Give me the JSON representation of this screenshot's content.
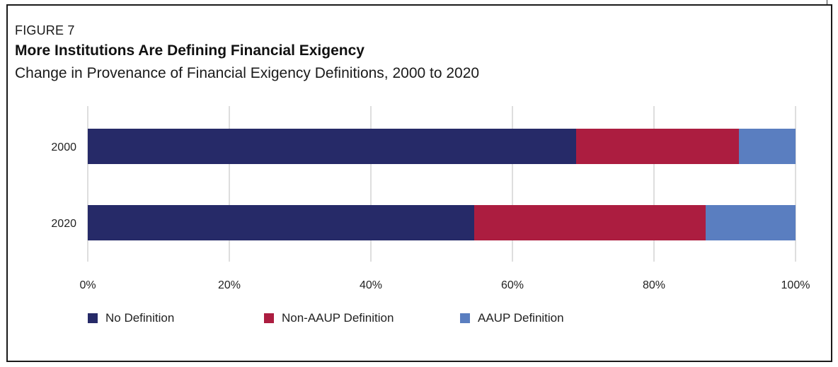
{
  "figure": {
    "label": "FIGURE 7",
    "title": "More Institutions Are Defining Financial Exigency",
    "subtitle": "Change in Provenance of Financial Exigency Definitions, 2000 to 2020"
  },
  "colors": {
    "no_definition": "#262a68",
    "non_aaup": "#ac1d40",
    "aaup": "#5a7ec0",
    "grid": "#bcbcbc",
    "text": "#222222"
  },
  "chart_data": {
    "type": "bar",
    "orientation": "horizontal",
    "stacked": true,
    "categories": [
      "2000",
      "2020"
    ],
    "series": [
      {
        "name": "No Definition",
        "values": [
          69.0,
          54.6
        ],
        "color_key": "no_definition"
      },
      {
        "name": "Non-AAUP Definition",
        "values": [
          23.0,
          32.7
        ],
        "color_key": "non_aaup"
      },
      {
        "name": "AAUP Definition",
        "values": [
          8.0,
          12.7
        ],
        "color_key": "aaup"
      }
    ],
    "xlim": [
      0,
      100
    ],
    "x_ticks": [
      "0%",
      "20%",
      "40%",
      "60%",
      "80%",
      "100%"
    ],
    "grid": true,
    "legend_position": "bottom"
  }
}
